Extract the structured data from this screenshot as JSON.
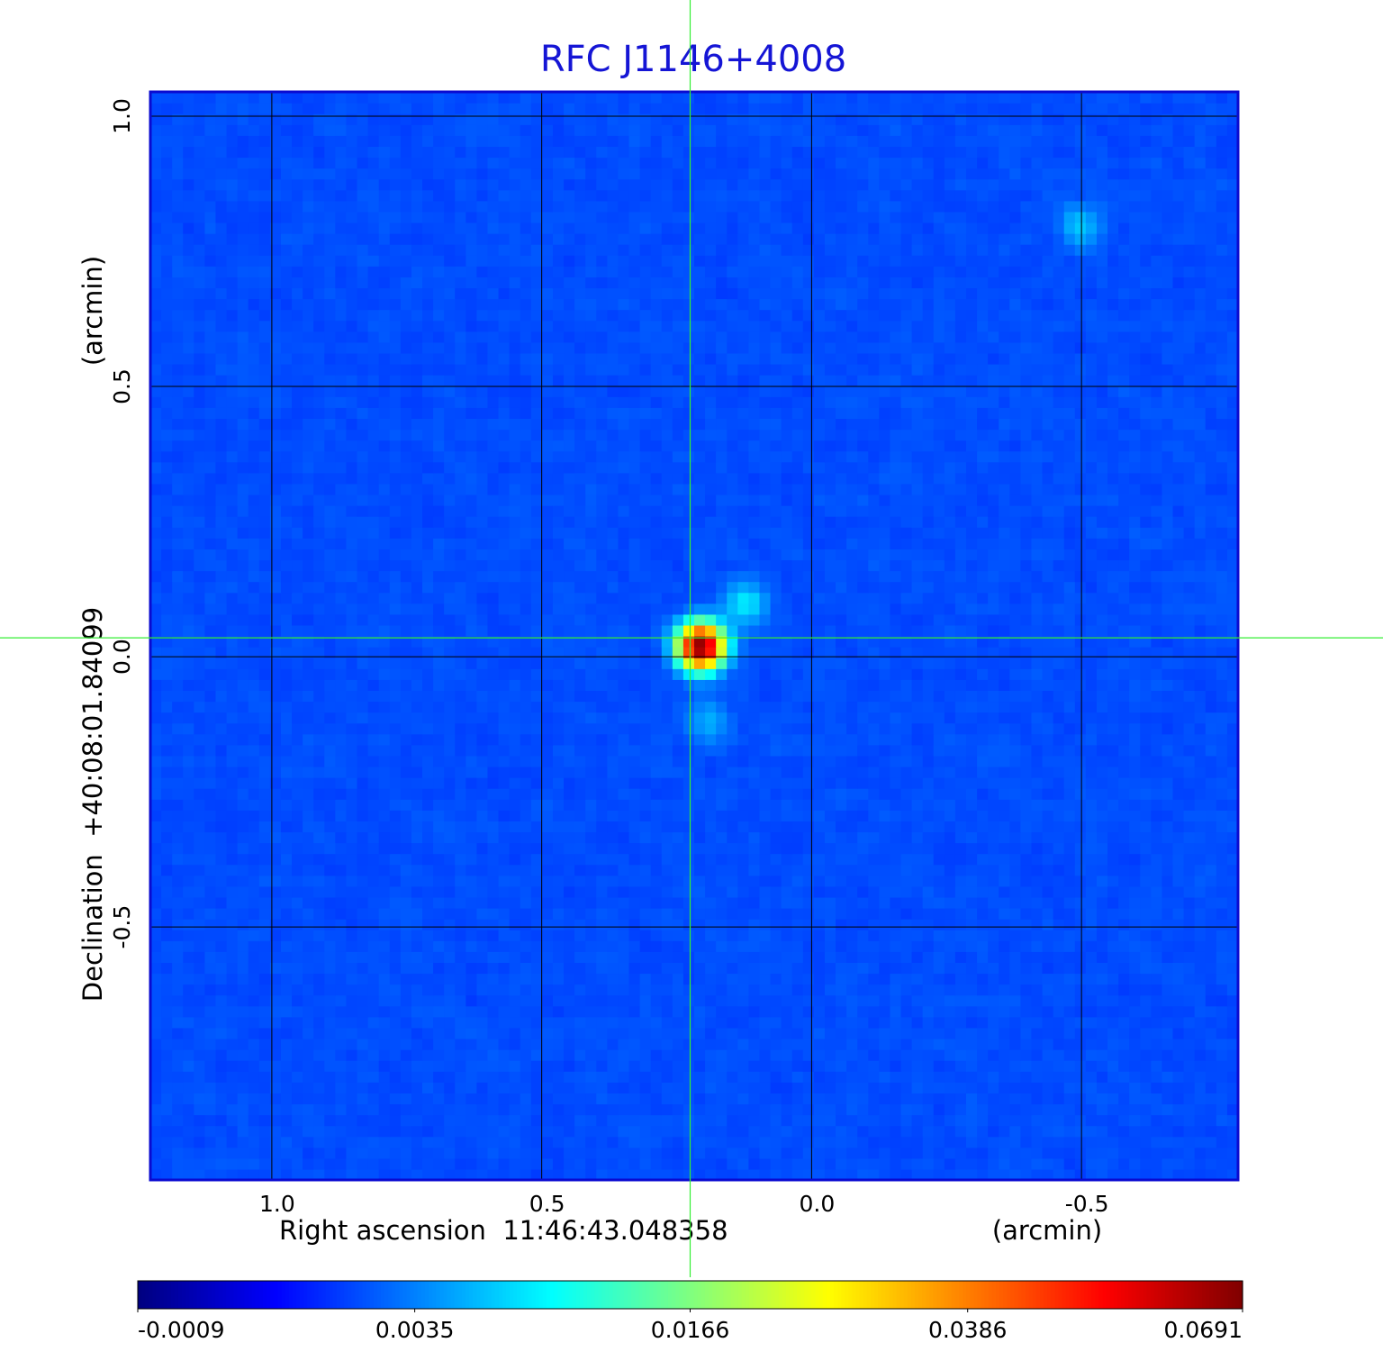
{
  "chart_data": {
    "type": "image",
    "title": "RFC J1146+4008",
    "xlabel": "Right ascension  11:46:43.048358",
    "xunit": "(arcmin)",
    "ylabel": "Declination  +40:08:01.84099",
    "yunit": "(arcmin)",
    "xlim": [
      1.225,
      -0.79
    ],
    "ylim": [
      -0.968,
      1.045
    ],
    "xticks": [
      {
        "value": 1,
        "label": "1.0"
      },
      0.5,
      {
        "value": 0,
        "label": "0.0"
      },
      -0.5
    ],
    "yticks": [
      {
        "value": 1,
        "label": "1.0"
      },
      0.5,
      {
        "value": 0,
        "label": "0.0"
      },
      -0.5
    ],
    "grid": true,
    "crosshair": {
      "x": 0.225,
      "y": 0.035
    },
    "sources": [
      {
        "x": 0.205,
        "y": 0.02,
        "peak": 0.0691
      },
      {
        "x": 0.123,
        "y": 0.098,
        "peak": 0.008
      },
      {
        "x": 0.19,
        "y": -0.12,
        "peak": 0.005
      },
      {
        "x": -0.497,
        "y": 0.798,
        "peak": 0.006
      }
    ],
    "colormap": "jet",
    "colorbar_scale": "sqrt",
    "clim": [
      -0.0009,
      0.0691
    ],
    "colorbar_ticks": [
      -0.0009,
      0.0035,
      0.0166,
      0.0386,
      0.0691
    ]
  }
}
